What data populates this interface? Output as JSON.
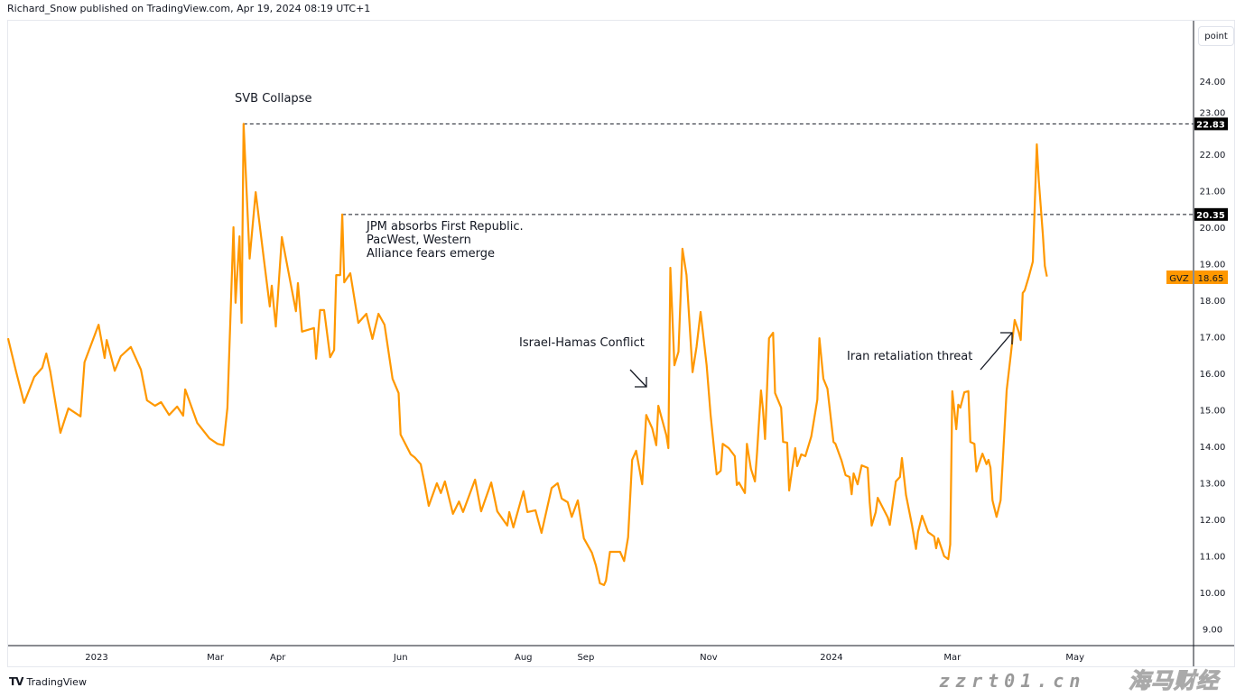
{
  "header": {
    "published": "Richard_Snow published on TradingView.com, Apr 19, 2024 08:19 UTC+1"
  },
  "scale_button": "point",
  "footer": {
    "logo": "TV",
    "brand": "TradingView"
  },
  "watermark": {
    "text": "海马财经",
    "url": "zzrt01.cn"
  },
  "colors": {
    "line": "#ff9800",
    "level_label_bg": "#000000",
    "price_label_bg": "#ff9800"
  },
  "chart_data": {
    "type": "line",
    "symbol": "GVZ",
    "last_value": "18.65",
    "ylim": [
      9,
      25.5
    ],
    "y_ticks": [
      "9.00",
      "10.00",
      "11.00",
      "12.00",
      "13.00",
      "14.00",
      "15.00",
      "16.00",
      "17.00",
      "18.00",
      "19.00",
      "20.00",
      "21.00",
      "22.00",
      "23.00",
      "24.00"
    ],
    "x_ticks": [
      {
        "label": "2023",
        "date": "2023-01-01"
      },
      {
        "label": "Mar",
        "date": "2023-03-01"
      },
      {
        "label": "Apr",
        "date": "2023-04-01"
      },
      {
        "label": "Jun",
        "date": "2023-06-01"
      },
      {
        "label": "Aug",
        "date": "2023-08-01"
      },
      {
        "label": "Sep",
        "date": "2023-09-01"
      },
      {
        "label": "Nov",
        "date": "2023-11-01"
      },
      {
        "label": "2024",
        "date": "2024-01-01"
      },
      {
        "label": "Mar",
        "date": "2024-03-01"
      },
      {
        "label": "May",
        "date": "2024-05-01"
      }
    ],
    "grid": false,
    "levels": [
      {
        "value": 22.83,
        "label": "22.83",
        "from": "2023-03-15"
      },
      {
        "value": 20.35,
        "label": "20.35",
        "from": "2023-05-03"
      }
    ],
    "annotations": [
      {
        "text": "SVB Collapse"
      },
      {
        "text": "JPM absorbs First Republic.\nPacWest, Western\nAlliance fears emerge"
      },
      {
        "text": "Israel-Hamas Conflict"
      },
      {
        "text": "Iran retaliation threat"
      }
    ],
    "series": [
      {
        "x": [
          "2022-11-18",
          "2022-11-22",
          "2022-11-26",
          "2022-12-01",
          "2022-12-05",
          "2022-12-07",
          "2022-12-09",
          "2022-12-14",
          "2022-12-18",
          "2022-12-24",
          "2022-12-26",
          "2023-01-02",
          "2023-01-05",
          "2023-01-06",
          "2023-01-10",
          "2023-01-13",
          "2023-01-18",
          "2023-01-23",
          "2023-01-26",
          "2023-01-30",
          "2023-02-02",
          "2023-02-06",
          "2023-02-10",
          "2023-02-13",
          "2023-02-14",
          "2023-02-20",
          "2023-02-26",
          "2023-03-02",
          "2023-03-05",
          "2023-03-07",
          "2023-03-10",
          "2023-03-11",
          "2023-03-13",
          "2023-03-14",
          "2023-03-15",
          "2023-03-18",
          "2023-03-21",
          "2023-03-25",
          "2023-03-28",
          "2023-03-29",
          "2023-03-31",
          "2023-04-03",
          "2023-04-07",
          "2023-04-10",
          "2023-04-11",
          "2023-04-13",
          "2023-04-19",
          "2023-04-20",
          "2023-04-22",
          "2023-04-24",
          "2023-04-27",
          "2023-04-29",
          "2023-04-30",
          "2023-05-02",
          "2023-05-03",
          "2023-05-04",
          "2023-05-07",
          "2023-05-11",
          "2023-05-15",
          "2023-05-18",
          "2023-05-21",
          "2023-05-24",
          "2023-05-28",
          "2023-05-31",
          "2023-06-01",
          "2023-06-06",
          "2023-06-08",
          "2023-06-11",
          "2023-06-13",
          "2023-06-15",
          "2023-06-19",
          "2023-06-21",
          "2023-06-23",
          "2023-06-27",
          "2023-06-30",
          "2023-07-02",
          "2023-07-08",
          "2023-07-11",
          "2023-07-16",
          "2023-07-19",
          "2023-07-24",
          "2023-07-25",
          "2023-07-27",
          "2023-08-01",
          "2023-08-03",
          "2023-08-07",
          "2023-08-10",
          "2023-08-15",
          "2023-08-18",
          "2023-08-20",
          "2023-08-23",
          "2023-08-25",
          "2023-08-28",
          "2023-08-31",
          "2023-09-04",
          "2023-09-06",
          "2023-09-08",
          "2023-09-10",
          "2023-09-11",
          "2023-09-13",
          "2023-09-18",
          "2023-09-20",
          "2023-09-22",
          "2023-09-24",
          "2023-09-26",
          "2023-09-29",
          "2023-10-01",
          "2023-10-04",
          "2023-10-06",
          "2023-10-07",
          "2023-10-11",
          "2023-10-12",
          "2023-10-13",
          "2023-10-15",
          "2023-10-17",
          "2023-10-19",
          "2023-10-21",
          "2023-10-24",
          "2023-10-26",
          "2023-10-28",
          "2023-10-31",
          "2023-11-02",
          "2023-11-05",
          "2023-11-07",
          "2023-11-08",
          "2023-11-11",
          "2023-11-14",
          "2023-11-15",
          "2023-11-16",
          "2023-11-19",
          "2023-11-20",
          "2023-11-22",
          "2023-11-24",
          "2023-11-25",
          "2023-11-27",
          "2023-11-28",
          "2023-11-29",
          "2023-12-01",
          "2023-12-03",
          "2023-12-04",
          "2023-12-07",
          "2023-12-08",
          "2023-12-10",
          "2023-12-11",
          "2023-12-14",
          "2023-12-15",
          "2023-12-17",
          "2023-12-19",
          "2023-12-22",
          "2023-12-25",
          "2023-12-26",
          "2023-12-28",
          "2023-12-30",
          "2024-01-02",
          "2024-01-03",
          "2024-01-06",
          "2024-01-08",
          "2024-01-10",
          "2024-01-11",
          "2024-01-12",
          "2024-01-14",
          "2024-01-16",
          "2024-01-19",
          "2024-01-20",
          "2024-01-21",
          "2024-01-23",
          "2024-01-24",
          "2024-01-29",
          "2024-01-30",
          "2024-02-02",
          "2024-02-04",
          "2024-02-05",
          "2024-02-07",
          "2024-02-10",
          "2024-02-12",
          "2024-02-13",
          "2024-02-15",
          "2024-02-18",
          "2024-02-21",
          "2024-02-22",
          "2024-02-23",
          "2024-02-26",
          "2024-02-28",
          "2024-02-29",
          "2024-03-01",
          "2024-03-03",
          "2024-03-04",
          "2024-03-05",
          "2024-03-07",
          "2024-03-09",
          "2024-03-10",
          "2024-03-12",
          "2024-03-13",
          "2024-03-16",
          "2024-03-18",
          "2024-03-19",
          "2024-03-20",
          "2024-03-21",
          "2024-03-23",
          "2024-03-25",
          "2024-03-28",
          "2024-03-30",
          "2024-04-01",
          "2024-04-03",
          "2024-04-04",
          "2024-04-05",
          "2024-04-06",
          "2024-04-08",
          "2024-04-10",
          "2024-04-12",
          "2024-04-13",
          "2024-04-15",
          "2024-04-16",
          "2024-04-17"
        ],
        "y": [
          16.96,
          16.05,
          15.19,
          15.9,
          16.15,
          16.54,
          16.05,
          14.37,
          15.04,
          14.82,
          16.3,
          17.33,
          16.42,
          16.91,
          16.07,
          16.47,
          16.72,
          16.1,
          15.26,
          15.11,
          15.21,
          14.86,
          15.09,
          14.84,
          15.56,
          14.64,
          14.22,
          14.07,
          14.03,
          15.06,
          20.0,
          17.93,
          19.75,
          17.38,
          22.83,
          19.14,
          20.96,
          19.16,
          17.83,
          18.4,
          17.28,
          19.73,
          18.57,
          17.7,
          18.47,
          17.14,
          17.24,
          16.4,
          17.73,
          17.73,
          16.44,
          16.64,
          18.69,
          18.69,
          20.35,
          18.49,
          18.74,
          17.38,
          17.63,
          16.94,
          17.63,
          17.33,
          15.85,
          15.46,
          14.32,
          13.78,
          13.7,
          13.51,
          12.96,
          12.37,
          12.99,
          12.72,
          13.04,
          12.15,
          12.49,
          12.2,
          13.09,
          12.22,
          13.01,
          12.22,
          11.83,
          12.2,
          11.78,
          12.77,
          12.2,
          12.25,
          11.63,
          12.86,
          12.99,
          12.57,
          12.47,
          12.07,
          12.52,
          11.48,
          11.09,
          10.74,
          10.25,
          10.2,
          10.32,
          11.11,
          11.11,
          10.86,
          11.51,
          13.63,
          13.88,
          12.96,
          14.86,
          14.49,
          14.03,
          15.11,
          14.3,
          13.95,
          18.89,
          16.22,
          16.59,
          19.41,
          18.69,
          16.03,
          16.72,
          17.68,
          16.22,
          14.86,
          13.23,
          13.33,
          14.07,
          13.95,
          13.73,
          12.94,
          13.01,
          12.72,
          14.07,
          13.38,
          13.04,
          13.78,
          15.53,
          15.01,
          14.2,
          16.96,
          17.11,
          15.46,
          15.06,
          14.12,
          14.1,
          12.79,
          13.95,
          13.46,
          13.78,
          13.73,
          14.27,
          15.28,
          16.96,
          15.85,
          15.58,
          14.12,
          14.07,
          13.61,
          13.21,
          13.16,
          12.69,
          13.26,
          12.96,
          13.48,
          13.41,
          12.47,
          11.83,
          12.2,
          12.59,
          12.05,
          11.85,
          13.04,
          13.16,
          13.68,
          12.67,
          11.85,
          11.19,
          11.65,
          12.1,
          11.65,
          11.53,
          11.21,
          11.48,
          10.99,
          10.91,
          11.31,
          15.51,
          14.47,
          15.14,
          15.06,
          15.48,
          15.51,
          14.12,
          14.07,
          13.31,
          13.8,
          13.51,
          13.63,
          13.41,
          12.52,
          12.07,
          12.52,
          15.53,
          16.47,
          17.46,
          17.14,
          16.91,
          18.2,
          18.27,
          18.64,
          19.06,
          22.27,
          21.28,
          19.8,
          18.94,
          18.65
        ]
      }
    ]
  }
}
